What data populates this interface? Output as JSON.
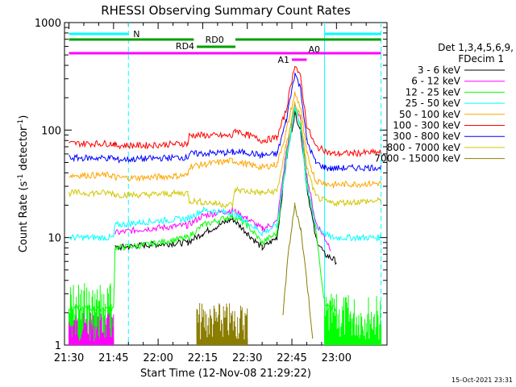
{
  "chart_data": {
    "type": "line",
    "title": "RHESSI Observing Summary Count Rates",
    "xlabel": "Start Time (12-Nov-08 21:29:22)",
    "ylabel_main": "Count Rate (s",
    "ylabel_sup1": "-1",
    "ylabel_mid": " detector",
    "ylabel_sup2": "-1",
    "ylabel_end": ")",
    "xlim_minutes": [
      0,
      100
    ],
    "ylim": [
      1,
      1000
    ],
    "yscale": "log",
    "x_ticks": [
      "21:30",
      "21:45",
      "22:00",
      "22:15",
      "22:30",
      "22:45",
      "23:00"
    ],
    "y_ticks": [
      "1",
      "10",
      "100",
      "1000"
    ],
    "timestamp": "15-Oct-2021 23:31",
    "legend_header_1": "Det 1,3,4,5,6,9,",
    "legend_header_2": "FDecim 1",
    "legend_position": "right",
    "vertical_markers": [
      {
        "x": 20,
        "color": "#00ffff",
        "style": "dashed"
      },
      {
        "x": 86,
        "color": "#00ffff",
        "style": "solid"
      },
      {
        "x": 105,
        "color": "#00ffff",
        "style": "dashed"
      }
    ],
    "status_bars": [
      {
        "label": "N",
        "color": "#00ffff",
        "segments": [
          [
            0,
            20
          ],
          [
            86,
            105
          ]
        ],
        "level": 1
      },
      {
        "label": "RD0",
        "color": "#00a000",
        "segments": [
          [
            0,
            42
          ],
          [
            56,
            105
          ]
        ],
        "level": 2
      },
      {
        "label": "RD4",
        "color": "#00a000",
        "segments": [
          [
            43,
            56
          ]
        ],
        "level": 3
      },
      {
        "label": "A0",
        "color": "#ff00ff",
        "segments": [
          [
            0,
            105
          ]
        ],
        "level": 4
      },
      {
        "label": "A1",
        "color": "#ff00ff",
        "segments": [
          [
            75,
            80
          ]
        ],
        "level": 5
      }
    ],
    "series": [
      {
        "name": "3 - 6 keV",
        "color": "#000000",
        "x": [
          0,
          15,
          15.5,
          25,
          40,
          45,
          55,
          60,
          65,
          70,
          73,
          76,
          78,
          80,
          83,
          86,
          88,
          90
        ],
        "y": [
          null,
          null,
          8,
          8.5,
          9,
          11,
          15,
          11,
          8,
          10,
          50,
          145,
          100,
          30,
          10,
          7,
          6.5,
          6
        ]
      },
      {
        "name": "6 - 12 keV",
        "color": "#ff00ff",
        "x": [
          0,
          15,
          15.5,
          25,
          40,
          45,
          55,
          60,
          65,
          70,
          73,
          76,
          78,
          80,
          83,
          86,
          88,
          90
        ],
        "y": [
          null,
          null,
          11,
          12,
          13,
          16,
          18,
          15,
          12,
          14,
          60,
          180,
          120,
          38,
          14,
          10,
          8,
          null
        ]
      },
      {
        "name": "12 - 25 keV",
        "color": "#00ff00",
        "x": [
          0,
          15,
          15.5,
          25,
          40,
          45,
          55,
          60,
          65,
          70,
          73,
          76,
          78,
          80,
          83,
          86,
          88,
          90
        ],
        "y": [
          2.2,
          2.2,
          8,
          8.5,
          10,
          13,
          16,
          13,
          9,
          11,
          55,
          165,
          110,
          32,
          12,
          2.5,
          2.2,
          2.2
        ]
      },
      {
        "name": "25 - 50 keV",
        "color": "#00ffff",
        "x": [
          0,
          15,
          15.5,
          25,
          40,
          45,
          55,
          60,
          65,
          70,
          73,
          76,
          78,
          80,
          83,
          86,
          88,
          105
        ],
        "y": [
          10,
          10,
          13,
          14,
          15,
          18,
          17,
          14,
          11,
          13,
          50,
          160,
          110,
          30,
          13,
          11,
          10,
          10
        ]
      },
      {
        "name": "50 - 100 keV",
        "color": "#ffa500",
        "x": [
          0,
          15,
          15.5,
          25,
          40,
          40.5,
          55,
          60,
          65,
          70,
          73,
          76,
          78,
          80,
          83,
          86,
          88,
          105
        ],
        "y": [
          38,
          38,
          36,
          36,
          38,
          46,
          52,
          48,
          45,
          48,
          95,
          220,
          160,
          60,
          34,
          32,
          31,
          32
        ]
      },
      {
        "name": "100 - 300 keV",
        "color": "#ff0000",
        "x": [
          0,
          15,
          15.5,
          25,
          40,
          40.5,
          55,
          56,
          60,
          65,
          70,
          73,
          76,
          78,
          80,
          83,
          86,
          88,
          105
        ],
        "y": [
          75,
          75,
          72,
          72,
          75,
          90,
          88,
          100,
          90,
          80,
          85,
          150,
          410,
          300,
          110,
          70,
          65,
          60,
          62
        ]
      },
      {
        "name": "300 - 800 keV",
        "color": "#0000ff",
        "x": [
          0,
          15,
          15.5,
          25,
          40,
          40.5,
          55,
          60,
          65,
          70,
          73,
          76,
          78,
          80,
          83,
          86,
          88,
          105
        ],
        "y": [
          55,
          55,
          53,
          54,
          56,
          60,
          62,
          62,
          58,
          60,
          120,
          340,
          240,
          80,
          50,
          45,
          44,
          45
        ]
      },
      {
        "name": "800 - 7000 keV",
        "color": "#d2c600",
        "x": [
          0,
          15,
          15.5,
          25,
          40,
          40.5,
          55,
          56,
          60,
          65,
          70,
          73,
          76,
          78,
          80,
          83,
          86,
          88,
          105
        ],
        "y": [
          26,
          26,
          25,
          25,
          26,
          22,
          20,
          28,
          27,
          26,
          27,
          70,
          180,
          130,
          45,
          24,
          22,
          21,
          22
        ]
      },
      {
        "name": "7000 - 15000 keV",
        "color": "#8b7d00",
        "x": [
          0,
          70,
          72,
          74,
          76,
          78,
          80,
          82,
          105
        ],
        "y": [
          null,
          null,
          2,
          8,
          20,
          12,
          4,
          1.2,
          null
        ]
      }
    ],
    "noisy_blocks": [
      {
        "color": "#00ff00",
        "x": [
          0,
          15
        ],
        "y": [
          1,
          4
        ]
      },
      {
        "color": "#ff00ff",
        "x": [
          0,
          15
        ],
        "y": [
          1,
          2
        ]
      },
      {
        "color": "#00ff00",
        "x": [
          86,
          105
        ],
        "y": [
          1,
          3
        ]
      },
      {
        "color": "#8b7d00",
        "x": [
          43,
          60
        ],
        "y": [
          1,
          2.5
        ]
      }
    ]
  }
}
